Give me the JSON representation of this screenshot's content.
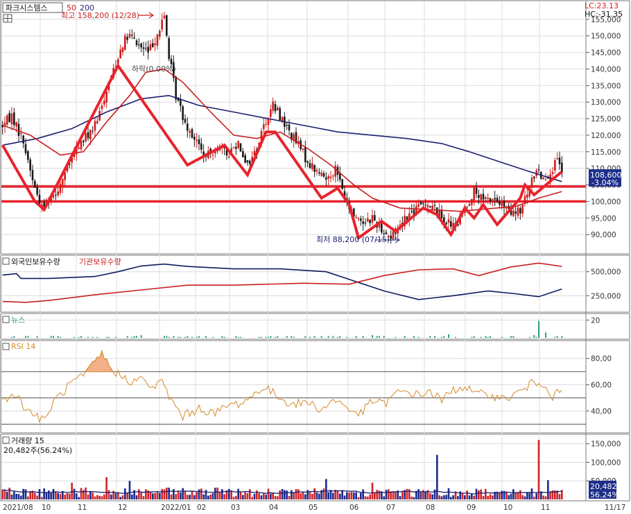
{
  "colors": {
    "up": "#d01c1c",
    "down": "#1a1a1a",
    "ma50": "#c81e1e",
    "ma200": "#1a1f6e",
    "annotation": "#e8232c",
    "foreign": "#0d1a5e",
    "institution": "#c81e1e",
    "news": "#2f9c86",
    "rsi": "#d38a2a",
    "vol_up": "#d0242a",
    "vol_down": "#1c2a8c",
    "grid": "#dcdcdc",
    "border": "#7a7a7a",
    "price_box": "#1e2f8a"
  },
  "header": {
    "title": "파크시스템스",
    "ma_a": "50",
    "ma_b": "200",
    "lc": "LC:23.13",
    "hc": "HC:-31.35",
    "high_note": "최고 158,200 (12/28)",
    "low_note": "최저 88,200 (07/15)",
    "mid_note": "하락(0.00%)",
    "current_price": "108,600",
    "current_change": "-3.04%"
  },
  "panels": {
    "holdings": {
      "title_a": "외국인보유수량",
      "title_b": "기관보유수량"
    },
    "news": {
      "title": "뉴스"
    },
    "rsi": {
      "title": "RSI 14"
    },
    "volume": {
      "title": "거래량  15",
      "info": "20,482주(56.24%)",
      "last_value": "20,482",
      "last_pct": "56.24%"
    }
  },
  "x_axis": [
    "2021/08",
    "10",
    "11",
    "12",
    "2022/01",
    "02",
    "03",
    "04",
    "05",
    "06",
    "07",
    "08",
    "09",
    "10",
    "11",
    "11/17"
  ],
  "chart_data": [
    {
      "type": "candlestick",
      "title": "파크시스템스",
      "ylim": [
        85000,
        160000
      ],
      "y_ticks": [
        "90,000",
        "95,000",
        "100,000",
        "105,000",
        "110,000",
        "115,000",
        "120,000",
        "125,000",
        "130,000",
        "135,000",
        "140,000",
        "145,000",
        "150,000",
        "155,000"
      ],
      "y_tick_values": [
        90000,
        95000,
        100000,
        105000,
        110000,
        115000,
        120000,
        125000,
        130000,
        135000,
        140000,
        145000,
        150000,
        155000
      ],
      "high": {
        "value": 158200,
        "date": "12/28"
      },
      "low": {
        "value": 88200,
        "date": "07/15"
      },
      "last": 108600,
      "price_path": [
        [
          0,
          123000
        ],
        [
          4,
          126000
        ],
        [
          9,
          118000
        ],
        [
          14,
          104000
        ],
        [
          17,
          98000
        ],
        [
          20,
          101000
        ],
        [
          24,
          104000
        ],
        [
          28,
          110000
        ],
        [
          33,
          117000
        ],
        [
          38,
          121000
        ],
        [
          41,
          124000
        ],
        [
          45,
          134000
        ],
        [
          49,
          142000
        ],
        [
          52,
          148000
        ],
        [
          55,
          150000
        ],
        [
          59,
          147000
        ],
        [
          63,
          145000
        ],
        [
          68,
          152000
        ],
        [
          70,
          156000
        ],
        [
          72,
          144000
        ],
        [
          75,
          132000
        ],
        [
          79,
          124000
        ],
        [
          84,
          118000
        ],
        [
          88,
          113000
        ],
        [
          93,
          117000
        ],
        [
          97,
          114000
        ],
        [
          102,
          118000
        ],
        [
          106,
          111000
        ],
        [
          110,
          116000
        ],
        [
          113,
          123000
        ],
        [
          117,
          129000
        ],
        [
          120,
          126000
        ],
        [
          124,
          121000
        ],
        [
          128,
          117000
        ],
        [
          132,
          112000
        ],
        [
          136,
          109000
        ],
        [
          140,
          107000
        ],
        [
          144,
          110000
        ],
        [
          147,
          104000
        ],
        [
          149,
          99000
        ],
        [
          152,
          96000
        ],
        [
          156,
          94000
        ],
        [
          160,
          95000
        ],
        [
          164,
          92000
        ],
        [
          168,
          89000
        ],
        [
          171,
          92000
        ],
        [
          174,
          95000
        ],
        [
          178,
          97000
        ],
        [
          183,
          100000
        ],
        [
          188,
          97000
        ],
        [
          192,
          94000
        ],
        [
          196,
          92000
        ],
        [
          200,
          98000
        ],
        [
          204,
          103000
        ],
        [
          208,
          100000
        ],
        [
          212,
          101000
        ],
        [
          216,
          99000
        ],
        [
          220,
          96000
        ],
        [
          224,
          97000
        ],
        [
          228,
          104000
        ],
        [
          231,
          110000
        ],
        [
          234,
          107000
        ],
        [
          237,
          109000
        ],
        [
          240,
          112000
        ],
        [
          242,
          109000
        ]
      ],
      "ma50": [
        [
          0,
          123000
        ],
        [
          12,
          120000
        ],
        [
          25,
          114000
        ],
        [
          35,
          115000
        ],
        [
          45,
          124000
        ],
        [
          55,
          132000
        ],
        [
          62,
          139000
        ],
        [
          70,
          140000
        ],
        [
          78,
          136000
        ],
        [
          90,
          127000
        ],
        [
          100,
          120000
        ],
        [
          110,
          119000
        ],
        [
          120,
          121000
        ],
        [
          132,
          116000
        ],
        [
          142,
          111000
        ],
        [
          152,
          105000
        ],
        [
          160,
          101000
        ],
        [
          172,
          98000
        ],
        [
          185,
          97500
        ],
        [
          198,
          97000
        ],
        [
          210,
          97800
        ],
        [
          222,
          98500
        ],
        [
          232,
          101000
        ],
        [
          242,
          103000
        ]
      ],
      "ma200": [
        [
          0,
          117000
        ],
        [
          15,
          119000
        ],
        [
          30,
          122000
        ],
        [
          45,
          127000
        ],
        [
          60,
          131000
        ],
        [
          72,
          132000
        ],
        [
          85,
          129000
        ],
        [
          100,
          127000
        ],
        [
          115,
          125000
        ],
        [
          130,
          123000
        ],
        [
          145,
          121000
        ],
        [
          160,
          120000
        ],
        [
          175,
          119000
        ],
        [
          190,
          117500
        ],
        [
          202,
          115000
        ],
        [
          215,
          112000
        ],
        [
          228,
          109000
        ],
        [
          242,
          106000
        ]
      ],
      "support_lines": [
        104500,
        100000
      ],
      "pattern_zigzag": [
        [
          0,
          117000
        ],
        [
          14,
          100000
        ],
        [
          18,
          97500
        ],
        [
          50,
          141000
        ],
        [
          80,
          111000
        ],
        [
          96,
          117000
        ],
        [
          106,
          108000
        ],
        [
          114,
          121000
        ],
        [
          118,
          121000
        ],
        [
          138,
          101000
        ],
        [
          145,
          104000
        ],
        [
          150,
          99000
        ],
        [
          154,
          89000
        ],
        [
          164,
          94000
        ],
        [
          170,
          91000
        ],
        [
          182,
          98000
        ],
        [
          188,
          96000
        ],
        [
          194,
          90000
        ],
        [
          200,
          98000
        ],
        [
          204,
          95000
        ],
        [
          208,
          99000
        ],
        [
          214,
          93000
        ],
        [
          224,
          101000
        ],
        [
          226,
          105000
        ],
        [
          230,
          102000
        ],
        [
          242,
          109000
        ]
      ],
      "n_bars": 243
    },
    {
      "type": "line",
      "title": "외국인보유수량 / 기관보유수량",
      "ylim": [
        100000,
        650000
      ],
      "y_ticks": [
        "250,000",
        "500,000"
      ],
      "y_tick_values": [
        250000,
        500000
      ],
      "series": [
        {
          "name": "외국인보유수량",
          "values": [
            [
              0,
              465000
            ],
            [
              6,
              480000
            ],
            [
              8,
              430000
            ],
            [
              20,
              430000
            ],
            [
              40,
              450000
            ],
            [
              50,
              500000
            ],
            [
              60,
              560000
            ],
            [
              70,
              580000
            ],
            [
              80,
              555000
            ],
            [
              100,
              530000
            ],
            [
              120,
              530000
            ],
            [
              140,
              500000
            ],
            [
              150,
              420000
            ],
            [
              165,
              300000
            ],
            [
              180,
              210000
            ],
            [
              195,
              250000
            ],
            [
              210,
              300000
            ],
            [
              222,
              270000
            ],
            [
              232,
              240000
            ],
            [
              242,
              320000
            ]
          ]
        },
        {
          "name": "기관보유수량",
          "values": [
            [
              0,
              190000
            ],
            [
              10,
              180000
            ],
            [
              20,
              200000
            ],
            [
              40,
              260000
            ],
            [
              60,
              310000
            ],
            [
              80,
              360000
            ],
            [
              100,
              360000
            ],
            [
              130,
              380000
            ],
            [
              150,
              370000
            ],
            [
              165,
              460000
            ],
            [
              180,
              520000
            ],
            [
              195,
              530000
            ],
            [
              206,
              460000
            ],
            [
              220,
              550000
            ],
            [
              232,
              590000
            ],
            [
              242,
              555000
            ]
          ]
        }
      ]
    },
    {
      "type": "bar",
      "title": "뉴스",
      "ylim": [
        0,
        25
      ],
      "y_ticks": [
        "20"
      ],
      "y_tick_values": [
        20
      ],
      "spikes": [
        [
          232,
          19
        ],
        [
          235,
          6
        ],
        [
          193,
          4
        ],
        [
          160,
          3
        ],
        [
          60,
          3
        ],
        [
          230,
          3
        ]
      ]
    },
    {
      "type": "line",
      "title": "RSI 14",
      "ylim": [
        25,
        92
      ],
      "y_ticks": [
        "40,00",
        "60,00",
        "80,00"
      ],
      "y_tick_values": [
        40,
        60,
        80
      ],
      "levels": [
        30,
        50,
        70
      ],
      "values": [
        [
          0,
          48
        ],
        [
          5,
          54
        ],
        [
          10,
          42
        ],
        [
          15,
          36
        ],
        [
          18,
          32
        ],
        [
          22,
          47
        ],
        [
          27,
          56
        ],
        [
          30,
          62
        ],
        [
          35,
          66
        ],
        [
          40,
          77
        ],
        [
          43,
          84
        ],
        [
          46,
          74
        ],
        [
          50,
          68
        ],
        [
          55,
          63
        ],
        [
          60,
          64
        ],
        [
          65,
          58
        ],
        [
          69,
          62
        ],
        [
          73,
          48
        ],
        [
          78,
          36
        ],
        [
          85,
          42
        ],
        [
          92,
          38
        ],
        [
          97,
          44
        ],
        [
          103,
          46
        ],
        [
          108,
          51
        ],
        [
          112,
          58
        ],
        [
          116,
          55
        ],
        [
          121,
          49
        ],
        [
          126,
          45
        ],
        [
          132,
          47
        ],
        [
          138,
          41
        ],
        [
          144,
          49
        ],
        [
          150,
          41
        ],
        [
          155,
          38
        ],
        [
          160,
          48
        ],
        [
          165,
          45
        ],
        [
          170,
          53
        ],
        [
          175,
          55
        ],
        [
          180,
          52
        ],
        [
          185,
          55
        ],
        [
          190,
          48
        ],
        [
          195,
          56
        ],
        [
          200,
          59
        ],
        [
          205,
          52
        ],
        [
          210,
          54
        ],
        [
          215,
          49
        ],
        [
          220,
          51
        ],
        [
          225,
          56
        ],
        [
          230,
          62
        ],
        [
          235,
          61
        ],
        [
          238,
          50
        ],
        [
          242,
          56
        ]
      ]
    },
    {
      "type": "bar",
      "title": "거래량  15",
      "ylim": [
        0,
        170000
      ],
      "y_ticks": [
        "50,000",
        "100,000",
        "150,000"
      ],
      "y_tick_values": [
        50000,
        100000,
        150000
      ],
      "spikes": [
        [
          232,
          160000
        ],
        [
          188,
          120000
        ],
        [
          30,
          45000
        ],
        [
          45,
          60000
        ],
        [
          55,
          50000
        ],
        [
          140,
          55000
        ],
        [
          160,
          45000
        ],
        [
          236,
          52000
        ]
      ],
      "last": 20482,
      "last_pct": 56.24
    }
  ]
}
